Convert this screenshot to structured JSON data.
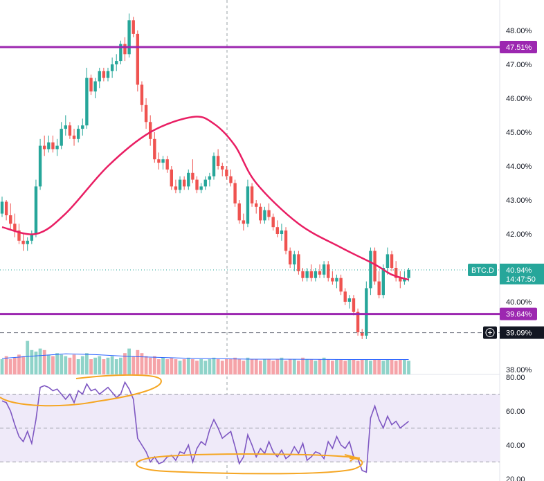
{
  "colors": {
    "up": "#26a69a",
    "down": "#ef5350",
    "vol_up": "#8fd3c9",
    "vol_down": "#f5a3a8",
    "ma": "#e91e63",
    "hline": "#9c27b0",
    "rsi": "#7e57c2",
    "rsi_band": "#efeaf9",
    "annotation": "#f5a623",
    "vol_ma": "#2962ff",
    "axis_text": "#131722",
    "grid": "#eef0f3"
  },
  "chart_data": [
    {
      "type": "candlestick",
      "symbol": "BTC.D",
      "current_price_label": "40.94%",
      "countdown_label": "14:47:50",
      "hline_labels": [
        "47.51%",
        "39.64%"
      ],
      "cursor_label": "39.09%",
      "cursor_icon": "plus-circle-icon",
      "ylim": [
        37.9,
        49.0
      ],
      "y_ticks": [
        "48.00%",
        "47.00%",
        "46.00%",
        "45.00%",
        "44.00%",
        "43.00%",
        "42.00%",
        "40.00%",
        "38.00%"
      ],
      "ohlc": [
        [
          42.6,
          43.1,
          42.5,
          42.95
        ],
        [
          42.95,
          43.0,
          42.4,
          42.55
        ],
        [
          42.55,
          42.9,
          42.1,
          42.3
        ],
        [
          42.3,
          42.6,
          41.9,
          42.1
        ],
        [
          42.1,
          42.3,
          41.7,
          41.8
        ],
        [
          41.8,
          42.0,
          41.5,
          41.7
        ],
        [
          41.7,
          41.9,
          41.5,
          41.8
        ],
        [
          41.8,
          42.1,
          41.7,
          42.0
        ],
        [
          42.0,
          43.6,
          41.9,
          43.4
        ],
        [
          43.4,
          44.8,
          43.3,
          44.6
        ],
        [
          44.6,
          44.9,
          44.3,
          44.5
        ],
        [
          44.5,
          44.9,
          44.4,
          44.7
        ],
        [
          44.7,
          44.9,
          44.4,
          44.5
        ],
        [
          44.5,
          44.8,
          44.3,
          44.6
        ],
        [
          44.6,
          45.3,
          44.5,
          45.1
        ],
        [
          45.1,
          45.5,
          44.9,
          45.2
        ],
        [
          45.2,
          45.3,
          44.8,
          44.9
        ],
        [
          44.9,
          45.1,
          44.6,
          44.8
        ],
        [
          44.8,
          45.2,
          44.7,
          45.1
        ],
        [
          45.1,
          45.4,
          44.9,
          45.2
        ],
        [
          45.2,
          46.9,
          45.1,
          46.6
        ],
        [
          46.6,
          46.7,
          46.1,
          46.2
        ],
        [
          46.2,
          46.6,
          46.0,
          46.5
        ],
        [
          46.5,
          46.9,
          46.3,
          46.8
        ],
        [
          46.8,
          46.9,
          46.5,
          46.6
        ],
        [
          46.6,
          46.9,
          46.5,
          46.8
        ],
        [
          46.8,
          47.2,
          46.6,
          47.0
        ],
        [
          47.0,
          47.3,
          46.8,
          47.1
        ],
        [
          47.1,
          47.7,
          47.0,
          47.6
        ],
        [
          47.6,
          47.8,
          47.1,
          47.3
        ],
        [
          47.3,
          48.5,
          47.2,
          48.3
        ],
        [
          48.3,
          48.4,
          47.8,
          47.9
        ],
        [
          47.9,
          48.0,
          46.2,
          46.4
        ],
        [
          46.4,
          46.5,
          45.6,
          45.8
        ],
        [
          45.8,
          46.0,
          45.1,
          45.3
        ],
        [
          45.3,
          45.5,
          44.6,
          44.8
        ],
        [
          44.8,
          45.0,
          44.1,
          44.2
        ],
        [
          44.2,
          44.4,
          43.9,
          44.1
        ],
        [
          44.1,
          44.3,
          43.9,
          44.2
        ],
        [
          44.2,
          44.3,
          43.8,
          43.9
        ],
        [
          43.9,
          44.0,
          43.3,
          43.4
        ],
        [
          43.4,
          43.6,
          43.2,
          43.3
        ],
        [
          43.3,
          43.7,
          43.2,
          43.6
        ],
        [
          43.6,
          43.7,
          43.3,
          43.4
        ],
        [
          43.4,
          43.9,
          43.3,
          43.8
        ],
        [
          43.8,
          44.2,
          43.5,
          43.6
        ],
        [
          43.6,
          43.7,
          43.2,
          43.3
        ],
        [
          43.3,
          43.5,
          43.2,
          43.4
        ],
        [
          43.4,
          43.7,
          43.3,
          43.6
        ],
        [
          43.6,
          43.8,
          43.4,
          43.7
        ],
        [
          43.7,
          44.4,
          43.6,
          44.3
        ],
        [
          44.3,
          44.5,
          43.9,
          44.0
        ],
        [
          44.0,
          44.1,
          43.7,
          43.9
        ],
        [
          43.9,
          44.0,
          43.6,
          43.7
        ],
        [
          43.7,
          43.9,
          43.4,
          43.5
        ],
        [
          43.5,
          43.6,
          42.8,
          42.9
        ],
        [
          42.9,
          43.0,
          42.3,
          42.4
        ],
        [
          42.4,
          42.6,
          42.1,
          42.3
        ],
        [
          42.3,
          43.6,
          42.2,
          43.4
        ],
        [
          43.4,
          43.5,
          42.8,
          42.9
        ],
        [
          42.9,
          43.0,
          42.6,
          42.8
        ],
        [
          42.8,
          42.9,
          42.3,
          42.4
        ],
        [
          42.4,
          42.8,
          42.3,
          42.7
        ],
        [
          42.7,
          42.9,
          42.4,
          42.5
        ],
        [
          42.5,
          42.6,
          42.1,
          42.2
        ],
        [
          42.2,
          42.4,
          41.9,
          42.0
        ],
        [
          42.0,
          42.3,
          41.8,
          42.1
        ],
        [
          42.1,
          42.2,
          41.4,
          41.5
        ],
        [
          41.5,
          41.6,
          41.0,
          41.1
        ],
        [
          41.1,
          41.5,
          40.9,
          41.4
        ],
        [
          41.4,
          41.5,
          40.8,
          40.9
        ],
        [
          40.9,
          41.0,
          40.6,
          40.7
        ],
        [
          40.7,
          41.0,
          40.6,
          40.9
        ],
        [
          40.9,
          41.1,
          40.6,
          40.7
        ],
        [
          40.7,
          41.0,
          40.6,
          40.9
        ],
        [
          40.9,
          41.1,
          40.7,
          40.8
        ],
        [
          40.8,
          41.2,
          40.7,
          41.1
        ],
        [
          41.1,
          41.2,
          40.6,
          40.7
        ],
        [
          40.7,
          40.9,
          40.5,
          40.6
        ],
        [
          40.6,
          40.8,
          40.4,
          40.7
        ],
        [
          40.7,
          40.8,
          40.2,
          40.3
        ],
        [
          40.3,
          40.4,
          39.9,
          40.0
        ],
        [
          40.0,
          40.2,
          39.8,
          40.1
        ],
        [
          40.1,
          40.2,
          39.6,
          39.7
        ],
        [
          39.7,
          39.8,
          39.0,
          39.1
        ],
        [
          39.1,
          39.2,
          38.9,
          39.0
        ],
        [
          39.0,
          40.6,
          38.9,
          40.4
        ],
        [
          40.4,
          41.6,
          40.2,
          41.5
        ],
        [
          41.5,
          41.6,
          40.5,
          40.6
        ],
        [
          40.6,
          40.9,
          40.1,
          40.2
        ],
        [
          40.2,
          41.1,
          40.1,
          41.0
        ],
        [
          41.0,
          41.6,
          40.8,
          41.4
        ],
        [
          41.4,
          41.5,
          40.9,
          41.0
        ],
        [
          41.0,
          41.2,
          40.6,
          40.7
        ],
        [
          40.7,
          40.9,
          40.4,
          40.6
        ],
        [
          40.6,
          40.9,
          40.5,
          40.7
        ],
        [
          40.7,
          41.0,
          40.6,
          40.94
        ]
      ],
      "ma_x": [
        0,
        8,
        15,
        25,
        35,
        45,
        50,
        55,
        60,
        70,
        80,
        88,
        92,
        96
      ],
      "ma_y": [
        42.2,
        42.0,
        42.6,
        44.0,
        45.0,
        45.45,
        45.25,
        44.6,
        43.5,
        42.3,
        41.6,
        41.1,
        40.8,
        40.65
      ],
      "hlines": [
        47.51,
        39.64
      ],
      "cursor_value": 39.09,
      "current_value": 40.94
    },
    {
      "type": "line",
      "name": "RSI",
      "ylim": [
        18,
        82
      ],
      "y_ticks": [
        "80.00",
        "60.00",
        "40.00",
        "20.00"
      ],
      "band": [
        30,
        70
      ],
      "mid": 50,
      "values": [
        66,
        65,
        60,
        52,
        45,
        42,
        48,
        41,
        55,
        74,
        75,
        74,
        72,
        73,
        70,
        67,
        70,
        65,
        72,
        70,
        76,
        72,
        73,
        70,
        72,
        74,
        71,
        68,
        70,
        77,
        73,
        67,
        44,
        40,
        36,
        30,
        33,
        29,
        30,
        33,
        34,
        31,
        36,
        35,
        40,
        30,
        38,
        42,
        40,
        49,
        55,
        50,
        44,
        46,
        48,
        39,
        29,
        33,
        46,
        40,
        33,
        38,
        35,
        42,
        36,
        33,
        37,
        32,
        34,
        39,
        35,
        41,
        31,
        33,
        36,
        35,
        32,
        42,
        38,
        45,
        40,
        38,
        42,
        33,
        32,
        25,
        24,
        56,
        63,
        55,
        50,
        57,
        52,
        54,
        50,
        52,
        54
      ]
    },
    {
      "type": "bar",
      "name": "Volume",
      "values": [
        1.0,
        1.2,
        1.0,
        1.1,
        1.3,
        1.2,
        2.2,
        1.6,
        1.5,
        1.7,
        1.6,
        1.3,
        1.2,
        1.4,
        1.3,
        1.2,
        1.1,
        1.3,
        1.0,
        1.2,
        1.4,
        1.0,
        1.1,
        1.2,
        1.0,
        1.1,
        1.2,
        1.0,
        1.1,
        1.4,
        1.7,
        1.2,
        1.6,
        1.4,
        1.2,
        1.1,
        1.2,
        1.0,
        1.1,
        1.0,
        1.1,
        1.0,
        0.9,
        1.0,
        1.1,
        1.0,
        0.9,
        1.0,
        0.9,
        1.0,
        1.1,
        1.0,
        0.9,
        1.0,
        1.0,
        1.1,
        1.0,
        0.9,
        1.1,
        1.0,
        1.0,
        0.9,
        1.0,
        1.0,
        0.9,
        1.0,
        1.1,
        0.9,
        1.0,
        1.0,
        0.9,
        1.1,
        1.0,
        1.0,
        0.9,
        1.0,
        1.1,
        1.0,
        0.9,
        1.0,
        1.0,
        0.9,
        1.0,
        1.0,
        0.9,
        1.0,
        1.0,
        0.9,
        1.0,
        1.0,
        0.9,
        1.0,
        1.0,
        0.9,
        1.0,
        1.0,
        0.9
      ],
      "ma_values": [
        1.05,
        1.2,
        1.35,
        1.3,
        1.18,
        1.12,
        1.06,
        1.03,
        1.0,
        1.0,
        0.99,
        0.98,
        0.98,
        0.98
      ]
    }
  ]
}
